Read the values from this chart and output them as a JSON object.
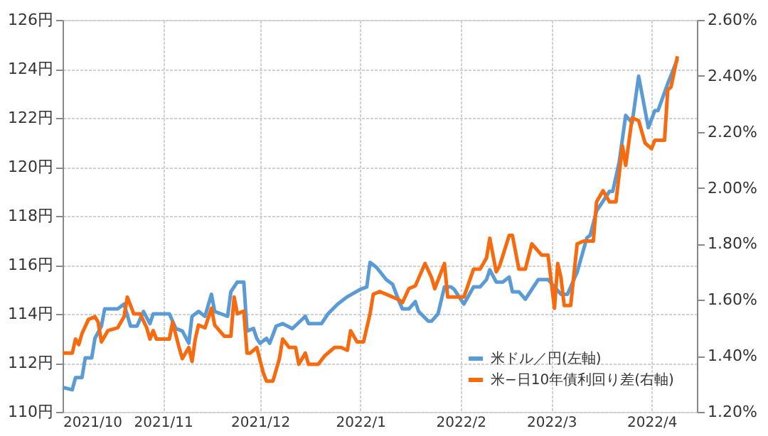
{
  "chart_data": {
    "type": "line",
    "grid": true,
    "legend": "bottom right",
    "marker": "none",
    "line_style": "solid",
    "xlim": [
      "2021-10-01",
      "2022-04-15"
    ],
    "xticks": [
      {
        "value": "2021-10-01",
        "label": "2021/10"
      },
      {
        "value": "2021-11-01",
        "label": "2021/11"
      },
      {
        "value": "2021-12-01",
        "label": "2021/12"
      },
      {
        "value": "2022-01-01",
        "label": "2022/1"
      },
      {
        "value": "2022-02-01",
        "label": "2022/2"
      },
      {
        "value": "2022-03-01",
        "label": "2022/3"
      },
      {
        "value": "2022-04-01",
        "label": "2022/4"
      }
    ],
    "ylim": [
      110,
      126
    ],
    "yticks": [
      {
        "value": 110,
        "label": "110円"
      },
      {
        "value": 112,
        "label": "112円"
      },
      {
        "value": 114,
        "label": "114円"
      },
      {
        "value": 116,
        "label": "116円"
      },
      {
        "value": 118,
        "label": "118円"
      },
      {
        "value": 120,
        "label": "120円"
      },
      {
        "value": 122,
        "label": "122円"
      },
      {
        "value": 124,
        "label": "124円"
      },
      {
        "value": 126,
        "label": "126円"
      }
    ],
    "y2lim": [
      1.2,
      2.6
    ],
    "y2ticks": [
      {
        "value": 1.2,
        "label": "1.20%"
      },
      {
        "value": 1.4,
        "label": "1.40%"
      },
      {
        "value": 1.6,
        "label": "1.60%"
      },
      {
        "value": 1.8,
        "label": "1.80%"
      },
      {
        "value": 2.0,
        "label": "2.00%"
      },
      {
        "value": 2.2,
        "label": "2.20%"
      },
      {
        "value": 2.4,
        "label": "2.40%"
      },
      {
        "value": 2.6,
        "label": "2.60%"
      }
    ],
    "series": [
      {
        "name": "米ドル／円(左軸)",
        "color": "#5b9bd5",
        "x": [
          "2021-10-01",
          "2021-10-04",
          "2021-10-05",
          "2021-10-07",
          "2021-10-08",
          "2021-10-10",
          "2021-10-11",
          "2021-10-13",
          "2021-10-14",
          "2021-10-18",
          "2021-10-20",
          "2021-10-22",
          "2021-10-24",
          "2021-10-26",
          "2021-10-28",
          "2021-10-29",
          "2021-11-03",
          "2021-11-05",
          "2021-11-07",
          "2021-11-09",
          "2021-11-10",
          "2021-11-12",
          "2021-11-14",
          "2021-11-16",
          "2021-11-17",
          "2021-11-19",
          "2021-11-21",
          "2021-11-22",
          "2021-11-24",
          "2021-11-26",
          "2021-11-27",
          "2021-11-29",
          "2021-11-30",
          "2021-12-01",
          "2021-12-03",
          "2021-12-04",
          "2021-12-06",
          "2021-12-08",
          "2021-12-11",
          "2021-12-15",
          "2021-12-16",
          "2021-12-20",
          "2021-12-22",
          "2021-12-25",
          "2021-12-28",
          "2022-01-01",
          "2022-01-03",
          "2022-01-04",
          "2022-01-06",
          "2022-01-09",
          "2022-01-11",
          "2022-01-13",
          "2022-01-14",
          "2022-01-16",
          "2022-01-18",
          "2022-01-19",
          "2022-01-22",
          "2022-01-23",
          "2022-01-25",
          "2022-01-27",
          "2022-01-29",
          "2022-01-30",
          "2022-02-02",
          "2022-02-05",
          "2022-02-07",
          "2022-02-09",
          "2022-02-10",
          "2022-02-12",
          "2022-02-14",
          "2022-02-16",
          "2022-02-17",
          "2022-02-19",
          "2022-02-21",
          "2022-02-23",
          "2022-02-25",
          "2022-02-28",
          "2022-03-04",
          "2022-03-06",
          "2022-03-09",
          "2022-03-12",
          "2022-03-13",
          "2022-03-15",
          "2022-03-19",
          "2022-03-20",
          "2022-03-22",
          "2022-03-24",
          "2022-03-26",
          "2022-03-28",
          "2022-03-31",
          "2022-04-02",
          "2022-04-03",
          "2022-04-06",
          "2022-04-09"
        ],
        "values": [
          111.0,
          110.9,
          111.4,
          111.4,
          112.2,
          112.2,
          113.0,
          113.5,
          114.2,
          114.2,
          114.4,
          113.5,
          113.5,
          114.1,
          113.6,
          114.0,
          114.0,
          113.4,
          113.3,
          112.8,
          113.9,
          114.1,
          113.9,
          114.8,
          114.1,
          114.0,
          113.9,
          114.9,
          115.3,
          115.3,
          113.3,
          113.4,
          113.0,
          112.8,
          113.0,
          112.8,
          113.5,
          113.6,
          113.4,
          113.9,
          113.6,
          113.6,
          114.0,
          114.4,
          114.7,
          115.0,
          115.1,
          116.1,
          115.9,
          115.4,
          115.2,
          114.5,
          114.2,
          114.2,
          114.5,
          114.1,
          113.7,
          113.7,
          114.0,
          115.1,
          115.1,
          115.0,
          114.4,
          115.1,
          115.1,
          115.4,
          115.8,
          115.3,
          115.3,
          115.5,
          114.9,
          114.9,
          114.6,
          115.0,
          115.4,
          115.4,
          114.8,
          114.8,
          115.7,
          117.1,
          117.2,
          118.2,
          119.0,
          119.0,
          120.2,
          122.1,
          121.8,
          123.7,
          121.6,
          122.3,
          122.3,
          123.4,
          124.4
        ]
      },
      {
        "name": "米−日10年債利回り差(右軸)",
        "color": "#f86a0e",
        "axis": "y2",
        "x": [
          "2021-10-01",
          "2021-10-04",
          "2021-10-05",
          "2021-10-06",
          "2021-10-07",
          "2021-10-09",
          "2021-10-11",
          "2021-10-12",
          "2021-10-13",
          "2021-10-15",
          "2021-10-18",
          "2021-10-20",
          "2021-10-21",
          "2021-10-23",
          "2021-10-25",
          "2021-10-27",
          "2021-10-28",
          "2021-10-29",
          "2021-10-30",
          "2021-11-03",
          "2021-11-04",
          "2021-11-06",
          "2021-11-07",
          "2021-11-09",
          "2021-11-10",
          "2021-11-11",
          "2021-11-12",
          "2021-11-14",
          "2021-11-16",
          "2021-11-17",
          "2021-11-20",
          "2021-11-22",
          "2021-11-23",
          "2021-11-24",
          "2021-11-26",
          "2021-11-27",
          "2021-11-28",
          "2021-11-30",
          "2021-12-02",
          "2021-12-03",
          "2021-12-05",
          "2021-12-07",
          "2021-12-08",
          "2021-12-10",
          "2021-12-12",
          "2021-12-13",
          "2021-12-15",
          "2021-12-16",
          "2021-12-19",
          "2021-12-21",
          "2021-12-23",
          "2021-12-24",
          "2021-12-26",
          "2021-12-28",
          "2021-12-29",
          "2021-12-31",
          "2022-01-02",
          "2022-01-04",
          "2022-01-05",
          "2022-01-07",
          "2022-01-09",
          "2022-01-13",
          "2022-01-14",
          "2022-01-16",
          "2022-01-18",
          "2022-01-21",
          "2022-01-23",
          "2022-01-24",
          "2022-01-27",
          "2022-01-28",
          "2022-02-02",
          "2022-02-05",
          "2022-02-07",
          "2022-02-09",
          "2022-02-10",
          "2022-02-12",
          "2022-02-13",
          "2022-02-16",
          "2022-02-17",
          "2022-02-19",
          "2022-02-21",
          "2022-02-23",
          "2022-02-26",
          "2022-02-28",
          "2022-03-02",
          "2022-03-03",
          "2022-03-04",
          "2022-03-05",
          "2022-03-07",
          "2022-03-09",
          "2022-03-11",
          "2022-03-14",
          "2022-03-15",
          "2022-03-17",
          "2022-03-19",
          "2022-03-21",
          "2022-03-23",
          "2022-03-24",
          "2022-03-26",
          "2022-03-28",
          "2022-03-30",
          "2022-04-01",
          "2022-04-02",
          "2022-04-05",
          "2022-04-06",
          "2022-04-07",
          "2022-04-09"
        ],
        "values": [
          1.41,
          1.41,
          1.46,
          1.44,
          1.48,
          1.53,
          1.54,
          1.52,
          1.45,
          1.49,
          1.5,
          1.54,
          1.61,
          1.55,
          1.55,
          1.5,
          1.46,
          1.49,
          1.46,
          1.46,
          1.52,
          1.43,
          1.39,
          1.43,
          1.38,
          1.46,
          1.51,
          1.5,
          1.57,
          1.51,
          1.47,
          1.47,
          1.61,
          1.55,
          1.56,
          1.41,
          1.41,
          1.43,
          1.34,
          1.31,
          1.31,
          1.39,
          1.46,
          1.43,
          1.43,
          1.37,
          1.41,
          1.37,
          1.37,
          1.4,
          1.42,
          1.43,
          1.43,
          1.42,
          1.49,
          1.45,
          1.45,
          1.55,
          1.62,
          1.63,
          1.62,
          1.6,
          1.59,
          1.64,
          1.65,
          1.73,
          1.68,
          1.64,
          1.73,
          1.61,
          1.61,
          1.71,
          1.71,
          1.75,
          1.82,
          1.7,
          1.72,
          1.83,
          1.83,
          1.71,
          1.71,
          1.8,
          1.76,
          1.76,
          1.57,
          1.73,
          1.68,
          1.58,
          1.58,
          1.8,
          1.81,
          1.81,
          1.95,
          1.99,
          1.95,
          1.95,
          2.15,
          2.08,
          2.25,
          2.24,
          2.16,
          2.14,
          2.17,
          2.17,
          2.35,
          2.36,
          2.47
        ]
      }
    ]
  }
}
